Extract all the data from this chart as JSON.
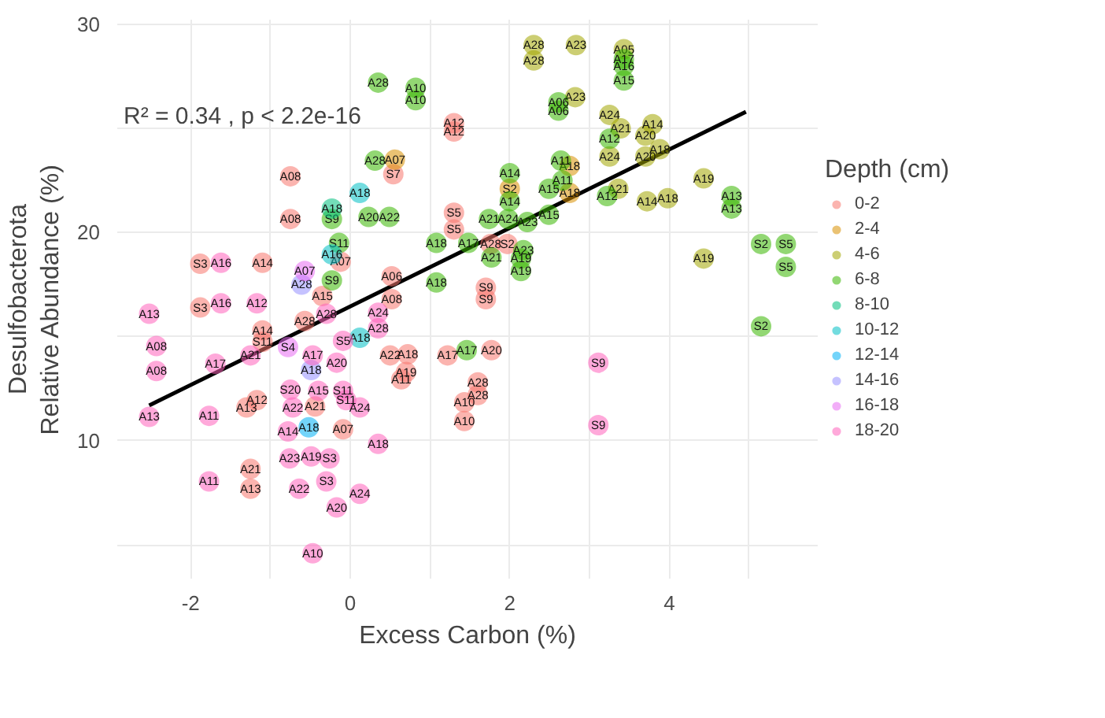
{
  "chart_data": {
    "type": "scatter",
    "xlabel": "Excess Carbon (%)",
    "ylabel": "Desulfobacterota\nRelative Abundance (%)",
    "legend_title": "Depth (cm)",
    "legend": "right",
    "grid": true,
    "marker": "circle",
    "xlim": [
      -2.92,
      5.86
    ],
    "ylim": [
      3.38,
      30.22
    ],
    "xticks": [
      -2,
      {
        "value": -1,
        "label": null
      },
      0,
      {
        "value": 1,
        "label": null
      },
      2,
      {
        "value": 3,
        "label": null
      },
      4,
      {
        "value": 5,
        "label": null
      }
    ],
    "yticks": [
      {
        "value": 5,
        "label": null
      },
      10,
      {
        "value": 15,
        "label": null
      },
      20,
      {
        "value": 25,
        "label": null
      },
      30
    ],
    "annotations": [
      "R² = 0.34 , p < 2.2e-16"
    ],
    "series": [
      {
        "name": "0-2",
        "color": "#f8766d",
        "x": [
          1.3,
          1.3,
          0.54,
          1.3,
          1.3,
          1.76,
          1.97,
          0.52,
          1.7,
          1.7,
          -0.75,
          -0.75,
          -0.12,
          -1.88,
          -1.1,
          -0.35,
          -1.88,
          -1.1,
          -0.57,
          -1.1,
          -1.17,
          -1.3,
          -0.44,
          -0.09,
          -1.25,
          -1.25,
          0.5,
          0.72,
          0.7,
          0.64,
          1.22,
          1.77,
          1.6,
          1.6,
          1.43,
          1.43,
          0.52
        ],
        "values": [
          25.25,
          24.85,
          22.8,
          20.95,
          20.15,
          19.45,
          19.45,
          17.9,
          17.35,
          16.8,
          22.7,
          20.65,
          18.6,
          18.5,
          18.55,
          16.95,
          16.4,
          15.3,
          15.75,
          14.75,
          11.95,
          11.6,
          11.65,
          10.55,
          8.65,
          7.7,
          14.1,
          14.15,
          13.3,
          12.95,
          14.1,
          14.35,
          12.8,
          12.2,
          11.85,
          10.95,
          16.8
        ],
        "value_labels": [
          "A12",
          "A12",
          "S7",
          "S5",
          "S5",
          "A28",
          "S2",
          "A06",
          "S9",
          "S9",
          "A08",
          "A08",
          "A07",
          "S3",
          "A14",
          "A15",
          "S3",
          "A14",
          "A28",
          "S11",
          "A12",
          "A13",
          "A21",
          "A07",
          "A21",
          "A13",
          "A22",
          "A18",
          "A19",
          "A11",
          "A17",
          "A20",
          "A28",
          "A28",
          "A10",
          "A10",
          "A08"
        ]
      },
      {
        "name": "2-4",
        "color": "#d89000",
        "x": [
          0.56,
          2.0,
          2.75,
          2.75
        ],
        "values": [
          23.5,
          22.1,
          23.2,
          21.9
        ],
        "value_labels": [
          "A07",
          "S2",
          "A18",
          "A18"
        ]
      },
      {
        "name": "4-6",
        "color": "#a3a500",
        "x": [
          2.3,
          2.3,
          2.83,
          2.82,
          3.43,
          3.25,
          3.25,
          3.39,
          3.79,
          3.7,
          3.7,
          3.88,
          3.36,
          3.72,
          3.98,
          4.43,
          4.43
        ],
        "values": [
          29.0,
          28.26,
          29.0,
          26.5,
          28.8,
          25.65,
          23.65,
          25.0,
          25.2,
          24.65,
          23.65,
          24.0,
          22.1,
          21.5,
          21.65,
          22.6,
          18.75
        ],
        "value_labels": [
          "A28",
          "A28",
          "A23",
          "A23",
          "A05",
          "A24",
          "A24",
          "A21",
          "A14",
          "A20",
          "A20",
          "A18",
          "A21",
          "A14",
          "A18",
          "A19",
          "A19"
        ]
      },
      {
        "name": "6-8",
        "color": "#39b600",
        "x": [
          3.43,
          3.43,
          3.43,
          2.61,
          2.61,
          3.25,
          3.22,
          4.78,
          4.78,
          5.15,
          5.15,
          5.46,
          5.46,
          0.35,
          0.31,
          0.82,
          0.82,
          2.0,
          2.0,
          2.64,
          2.66,
          2.49,
          2.49,
          0.23,
          0.49,
          1.74,
          1.98,
          2.22,
          2.17,
          1.08,
          1.08,
          1.48,
          1.46,
          1.77,
          2.14,
          2.14,
          -0.23,
          -0.23,
          -0.14
        ],
        "values": [
          28.33,
          28.0,
          27.3,
          26.25,
          25.85,
          24.5,
          21.75,
          21.75,
          21.15,
          19.45,
          15.5,
          19.45,
          18.35,
          27.2,
          23.45,
          26.95,
          26.35,
          22.85,
          21.5,
          23.45,
          22.5,
          22.1,
          20.85,
          20.75,
          20.75,
          20.65,
          20.65,
          20.5,
          19.15,
          19.5,
          17.6,
          19.5,
          14.35,
          18.8,
          18.75,
          18.15,
          20.65,
          17.7,
          19.5
        ],
        "value_labels": [
          "A17",
          "A16",
          "A15",
          "A06",
          "A06",
          "A12",
          "A12",
          "A13",
          "A13",
          "S2",
          "S2",
          "S5",
          "S5",
          "A28",
          "A28",
          "A10",
          "A10",
          "A14",
          "A14",
          "A11",
          "A11",
          "A15",
          "A15",
          "A20",
          "A22",
          "A21",
          "A24",
          "A23",
          "A23",
          "A18",
          "A18",
          "A17",
          "A17",
          "A21",
          "A19",
          "A19",
          "S9",
          "S9",
          "S11"
        ]
      },
      {
        "name": "8-10",
        "color": "#00bf7d",
        "x": [
          -0.23
        ],
        "values": [
          21.15
        ],
        "value_labels": [
          "A18"
        ]
      },
      {
        "name": "10-12",
        "color": "#00bfc4",
        "x": [
          0.12,
          -0.23,
          0.12
        ],
        "values": [
          21.9,
          18.95,
          14.95
        ],
        "value_labels": [
          "A18",
          "A16",
          "A18"
        ]
      },
      {
        "name": "12-14",
        "color": "#00b0f6",
        "x": [
          -0.52
        ],
        "values": [
          10.65
        ],
        "value_labels": [
          "A18"
        ]
      },
      {
        "name": "14-16",
        "color": "#9590ff",
        "x": [
          -0.49,
          -0.61
        ],
        "values": [
          13.4,
          17.5
        ],
        "value_labels": [
          "A18",
          "A28"
        ]
      },
      {
        "name": "16-18",
        "color": "#e76bf3",
        "x": [
          -0.57,
          -0.78
        ],
        "values": [
          18.15,
          14.5
        ],
        "value_labels": [
          "A07",
          "S4"
        ]
      },
      {
        "name": "18-20",
        "color": "#ff62bc",
        "x": [
          -2.52,
          -2.52,
          -1.62,
          -1.62,
          -1.17,
          -2.43,
          -2.43,
          -1.69,
          -1.25,
          -0.3,
          0.35,
          0.35,
          -1.77,
          -1.77,
          -0.75,
          -0.4,
          -0.09,
          -0.05,
          0.12,
          -0.72,
          -0.78,
          0.35,
          -0.76,
          -0.49,
          -0.26,
          -0.3,
          -0.64,
          0.12,
          -0.17,
          -0.47,
          3.11,
          3.11,
          -0.09,
          -0.17,
          -0.47
        ],
        "values": [
          16.1,
          11.15,
          18.55,
          16.6,
          16.6,
          14.55,
          13.35,
          13.7,
          14.1,
          16.1,
          16.15,
          15.4,
          11.2,
          8.05,
          12.45,
          12.4,
          12.4,
          11.95,
          11.6,
          11.6,
          10.45,
          9.85,
          9.15,
          9.25,
          9.15,
          8.05,
          7.7,
          7.45,
          6.8,
          4.6,
          13.75,
          10.75,
          14.8,
          13.75,
          14.1
        ],
        "value_labels": [
          "A13",
          "A13",
          "A16",
          "A16",
          "A12",
          "A08",
          "A08",
          "A17",
          "A21",
          "A28",
          "A24",
          "A28",
          "A11",
          "A11",
          "S20",
          "A15",
          "S11",
          "S11",
          "A24",
          "A22",
          "A14",
          "A18",
          "A23",
          "A19",
          "S3",
          "S3",
          "A22",
          "A24",
          "A20",
          "A10",
          "S9",
          "S9",
          "S5",
          "A20",
          "A17"
        ]
      },
      {
        "type": "line",
        "marker": "none",
        "color": "#000000",
        "x": [
          -2.52,
          4.96
        ],
        "values": [
          11.7,
          25.8
        ]
      }
    ]
  }
}
